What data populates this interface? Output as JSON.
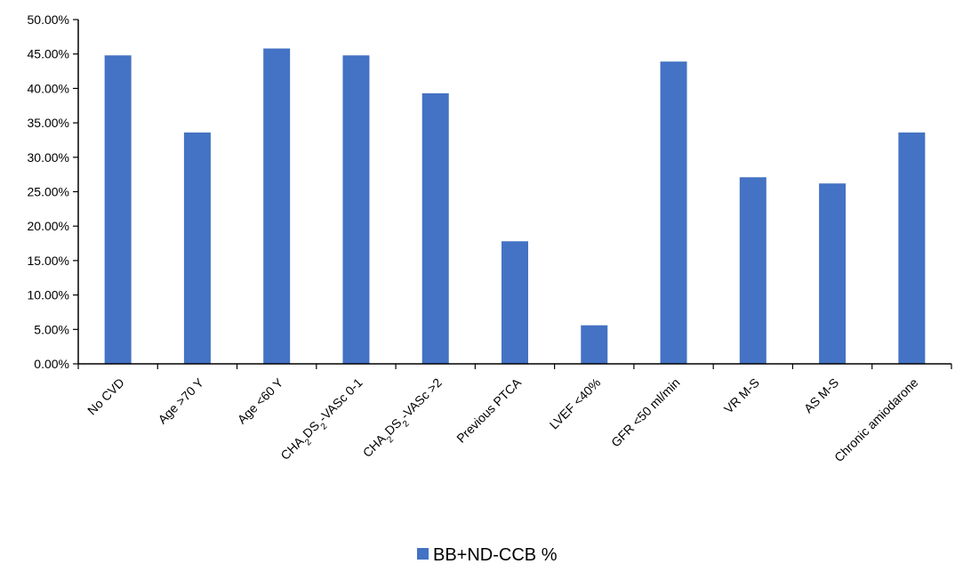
{
  "chart_data": {
    "type": "bar",
    "categories": [
      "No CVD",
      "Age >70 Y",
      "Age <60 Y",
      "CHA2DS2-VASc 0-1",
      "CHA2DS2-VASc >2",
      "Previous PTCA",
      "LVEF <40%",
      "GFR <50 ml/min",
      "VR M-S",
      "AS M-S",
      "Chronic amiodarone"
    ],
    "category_parts": [
      [
        {
          "t": "No CVD"
        }
      ],
      [
        {
          "t": "Age >70 Y"
        }
      ],
      [
        {
          "t": "Age <60 Y"
        }
      ],
      [
        {
          "t": "CHA"
        },
        {
          "t": "2",
          "sub": true
        },
        {
          "t": "DS"
        },
        {
          "t": "2",
          "sub": true
        },
        {
          "t": "-VASc 0-1"
        }
      ],
      [
        {
          "t": "CHA"
        },
        {
          "t": "2",
          "sub": true
        },
        {
          "t": "DS"
        },
        {
          "t": "2",
          "sub": true
        },
        {
          "t": "-VASc >2"
        }
      ],
      [
        {
          "t": "Previous PTCA"
        }
      ],
      [
        {
          "t": "LVEF <40%"
        }
      ],
      [
        {
          "t": "GFR <50 ml/min"
        }
      ],
      [
        {
          "t": "VR M-S"
        }
      ],
      [
        {
          "t": "AS M-S"
        }
      ],
      [
        {
          "t": "Chronic amiodarone"
        }
      ]
    ],
    "series": [
      {
        "name": "BB+ND-CCB %",
        "color": "#4472C4",
        "values": [
          44.8,
          33.6,
          45.8,
          44.8,
          39.3,
          17.8,
          5.6,
          43.9,
          27.1,
          26.2,
          33.6
        ]
      }
    ],
    "y_ticks": [
      "0.00%",
      "5.00%",
      "10.00%",
      "15.00%",
      "20.00%",
      "25.00%",
      "30.00%",
      "35.00%",
      "40.00%",
      "45.00%",
      "50.00%"
    ],
    "ylim": [
      0,
      50
    ],
    "ystep": 5,
    "grid": false,
    "legend_position": "bottom",
    "title": "",
    "xlabel": "",
    "ylabel": ""
  }
}
